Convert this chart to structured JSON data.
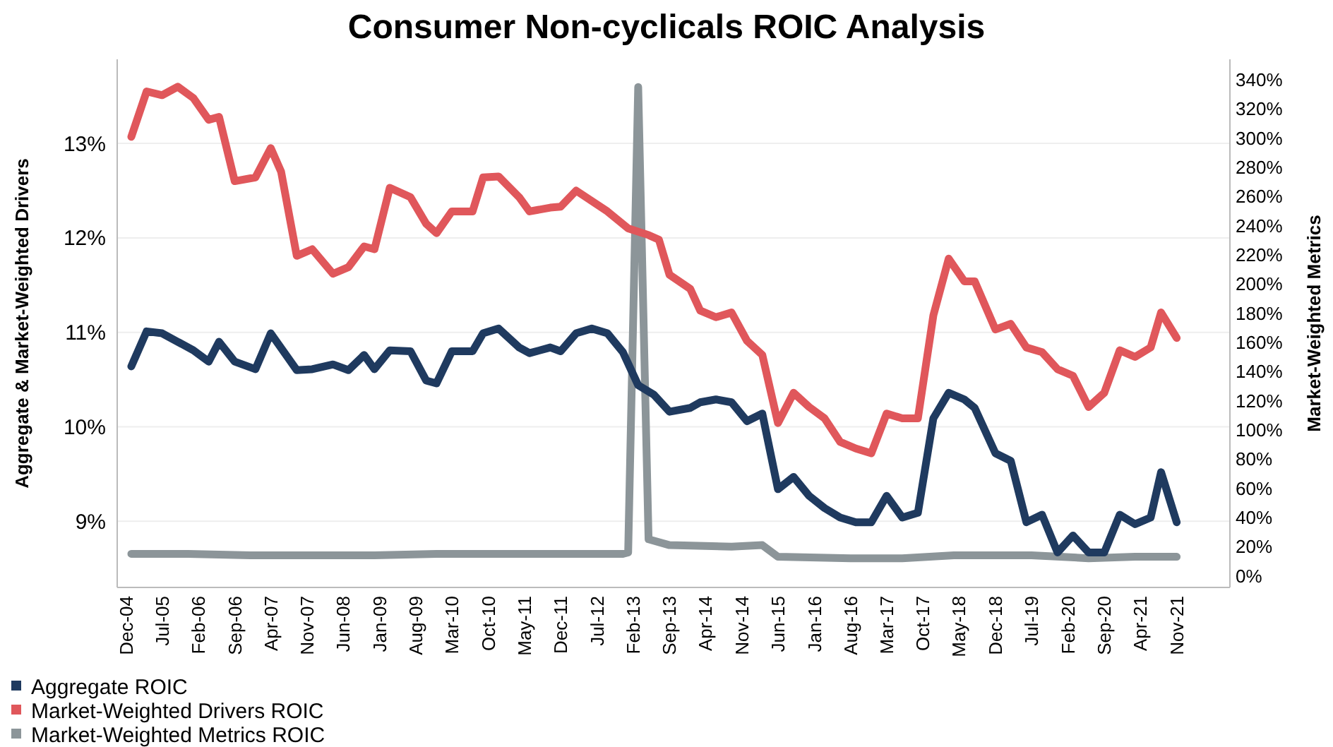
{
  "chart_data": {
    "type": "line",
    "title": "Consumer Non-cyclicals ROIC Analysis",
    "ylabel": "Aggregate & Market-Weighted Drivers",
    "y2label": "Market-Weighted Metrics",
    "xlim": [
      "2004-10-10",
      "2022-09-10"
    ],
    "xticks": [
      {
        "value": "2004-12",
        "label": "Dec-04"
      },
      {
        "value": "2005-07",
        "label": "Jul-05"
      },
      {
        "value": "2006-02",
        "label": "Feb-06"
      },
      {
        "value": "2006-09",
        "label": "Sep-06"
      },
      {
        "value": "2007-04",
        "label": "Apr-07"
      },
      {
        "value": "2007-11",
        "label": "Nov-07"
      },
      {
        "value": "2008-06",
        "label": "Jun-08"
      },
      {
        "value": "2009-01",
        "label": "Jan-09"
      },
      {
        "value": "2009-08",
        "label": "Aug-09"
      },
      {
        "value": "2010-03",
        "label": "Mar-10"
      },
      {
        "value": "2010-10",
        "label": "Oct-10"
      },
      {
        "value": "2011-05",
        "label": "May-11"
      },
      {
        "value": "2011-12",
        "label": "Dec-11"
      },
      {
        "value": "2012-07",
        "label": "Jul-12"
      },
      {
        "value": "2013-02",
        "label": "Feb-13"
      },
      {
        "value": "2013-09",
        "label": "Sep-13"
      },
      {
        "value": "2014-04",
        "label": "Apr-14"
      },
      {
        "value": "2014-11",
        "label": "Nov-14"
      },
      {
        "value": "2015-06",
        "label": "Jun-15"
      },
      {
        "value": "2016-01",
        "label": "Jan-16"
      },
      {
        "value": "2016-08",
        "label": "Aug-16"
      },
      {
        "value": "2017-03",
        "label": "Mar-17"
      },
      {
        "value": "2017-10",
        "label": "Oct-17"
      },
      {
        "value": "2018-05",
        "label": "May-18"
      },
      {
        "value": "2018-12",
        "label": "Dec-18"
      },
      {
        "value": "2019-07",
        "label": "Jul-19"
      },
      {
        "value": "2020-02",
        "label": "Feb-20"
      },
      {
        "value": "2020-09",
        "label": "Sep-20"
      },
      {
        "value": "2021-04",
        "label": "Apr-21"
      },
      {
        "value": "2021-11",
        "label": "Nov-21"
      }
    ],
    "ylim": [
      8.3,
      13.89
    ],
    "yticks": [
      {
        "value": 9,
        "label": "9%"
      },
      {
        "value": 10,
        "label": "10%"
      },
      {
        "value": 11,
        "label": "11%"
      },
      {
        "value": 12,
        "label": "12%"
      },
      {
        "value": 13,
        "label": "13%"
      }
    ],
    "y2lim": [
      -8,
      354
    ],
    "y2ticks": [
      {
        "value": 0,
        "label": "0%"
      },
      {
        "value": 20,
        "label": "20%"
      },
      {
        "value": 40,
        "label": "40%"
      },
      {
        "value": 60,
        "label": "60%"
      },
      {
        "value": 80,
        "label": "80%"
      },
      {
        "value": 100,
        "label": "100%"
      },
      {
        "value": 120,
        "label": "120%"
      },
      {
        "value": 140,
        "label": "140%"
      },
      {
        "value": 160,
        "label": "160%"
      },
      {
        "value": 180,
        "label": "180%"
      },
      {
        "value": 200,
        "label": "200%"
      },
      {
        "value": 220,
        "label": "220%"
      },
      {
        "value": 240,
        "label": "240%"
      },
      {
        "value": 260,
        "label": "260%"
      },
      {
        "value": 280,
        "label": "280%"
      },
      {
        "value": 300,
        "label": "300%"
      },
      {
        "value": 320,
        "label": "320%"
      },
      {
        "value": 340,
        "label": "340%"
      }
    ],
    "grid": "y",
    "legend": "bottom left",
    "marker": "none",
    "line_style": "solid",
    "series": [
      {
        "name": "Aggregate ROIC",
        "color": "#1f3a5f",
        "x": [
          "2005-01",
          "2005-04",
          "2005-07",
          "2006-01",
          "2006-04",
          "2006-06",
          "2006-09",
          "2007-01",
          "2007-04",
          "2007-09",
          "2007-12",
          "2008-04",
          "2008-07",
          "2008-10",
          "2008-12",
          "2009-03",
          "2009-07",
          "2009-10",
          "2009-12",
          "2010-03",
          "2010-07",
          "2010-09",
          "2010-12",
          "2011-04",
          "2011-06",
          "2011-10",
          "2011-12",
          "2012-03",
          "2012-06",
          "2012-09",
          "2012-12",
          "2013-03",
          "2013-06",
          "2013-09",
          "2014-01",
          "2014-03",
          "2014-06",
          "2014-09",
          "2014-12",
          "2015-03",
          "2015-06",
          "2015-09",
          "2015-12",
          "2016-03",
          "2016-06",
          "2016-09",
          "2016-12",
          "2017-03",
          "2017-06",
          "2017-09",
          "2017-12",
          "2018-03",
          "2018-06",
          "2018-08",
          "2018-12",
          "2019-03",
          "2019-06",
          "2019-09",
          "2019-12",
          "2020-03",
          "2020-06",
          "2020-09",
          "2020-12",
          "2021-03",
          "2021-06",
          "2021-08",
          "2021-11"
        ],
        "values": [
          10.64,
          11.01,
          10.99,
          10.81,
          10.69,
          10.9,
          10.69,
          10.61,
          10.99,
          10.6,
          10.61,
          10.66,
          10.6,
          10.76,
          10.61,
          10.81,
          10.8,
          10.49,
          10.46,
          10.8,
          10.8,
          10.99,
          11.04,
          10.84,
          10.78,
          10.84,
          10.8,
          10.99,
          11.04,
          10.99,
          10.79,
          10.44,
          10.34,
          10.16,
          10.2,
          10.26,
          10.29,
          10.26,
          10.06,
          10.14,
          9.34,
          9.47,
          9.27,
          9.14,
          9.04,
          8.99,
          8.99,
          9.27,
          9.04,
          9.09,
          10.09,
          10.36,
          10.29,
          10.2,
          9.72,
          9.64,
          8.99,
          9.07,
          8.67,
          8.85,
          8.67,
          8.67,
          9.07,
          8.97,
          9.04,
          9.52,
          8.99
        ]
      },
      {
        "name": "Market-Weighted Drivers ROIC",
        "color": "#e0575b",
        "x": [
          "2005-01",
          "2005-04",
          "2005-07",
          "2005-10",
          "2006-01",
          "2006-04",
          "2006-06",
          "2006-09",
          "2007-01",
          "2007-04",
          "2007-06",
          "2007-09",
          "2007-12",
          "2008-04",
          "2008-07",
          "2008-10",
          "2008-12",
          "2009-03",
          "2009-07",
          "2009-10",
          "2009-12",
          "2010-03",
          "2010-07",
          "2010-09",
          "2010-12",
          "2011-04",
          "2011-06",
          "2011-10",
          "2011-12",
          "2012-03",
          "2012-09",
          "2013-01",
          "2013-05",
          "2013-07",
          "2013-09",
          "2014-01",
          "2014-03",
          "2014-06",
          "2014-09",
          "2014-12",
          "2015-03",
          "2015-06",
          "2015-09",
          "2015-12",
          "2016-03",
          "2016-06",
          "2016-09",
          "2016-12",
          "2017-03",
          "2017-06",
          "2017-09",
          "2017-12",
          "2018-03",
          "2018-06",
          "2018-08",
          "2018-12",
          "2019-03",
          "2019-06",
          "2019-09",
          "2019-12",
          "2020-03",
          "2020-06",
          "2020-09",
          "2020-12",
          "2021-03",
          "2021-06",
          "2021-08",
          "2021-11"
        ],
        "values": [
          13.07,
          13.55,
          13.51,
          13.6,
          13.48,
          13.25,
          13.28,
          12.6,
          12.64,
          12.95,
          12.7,
          11.81,
          11.88,
          11.62,
          11.69,
          11.91,
          11.88,
          12.53,
          12.43,
          12.15,
          12.05,
          12.28,
          12.28,
          12.64,
          12.65,
          12.43,
          12.28,
          12.32,
          12.33,
          12.5,
          12.28,
          12.1,
          12.03,
          11.98,
          11.61,
          11.46,
          11.23,
          11.16,
          11.21,
          10.91,
          10.76,
          10.04,
          10.36,
          10.21,
          10.09,
          9.84,
          9.77,
          9.72,
          10.14,
          10.09,
          10.09,
          11.18,
          11.78,
          11.54,
          11.54,
          11.03,
          11.09,
          10.84,
          10.79,
          10.61,
          10.54,
          10.21,
          10.36,
          10.81,
          10.74,
          10.84,
          11.21,
          10.94
        ]
      },
      {
        "name": "Market-Weighted Metrics ROIC",
        "color": "#8c9599",
        "axis": "y2",
        "x": [
          "2005-01",
          "2005-12",
          "2006-12",
          "2007-12",
          "2008-12",
          "2009-12",
          "2010-12",
          "2011-12",
          "2012-12",
          "2013-01",
          "2013-03",
          "2013-05",
          "2013-09",
          "2014-09",
          "2015-03",
          "2015-06",
          "2016-08",
          "2017-06",
          "2018-04",
          "2019-07",
          "2020-06",
          "2021-03",
          "2021-11"
        ],
        "values": [
          15,
          15,
          14,
          14,
          14,
          15,
          15,
          15,
          15,
          16,
          335,
          25,
          21,
          20,
          21,
          13,
          12,
          12,
          14,
          14,
          12,
          13,
          13
        ]
      }
    ]
  }
}
